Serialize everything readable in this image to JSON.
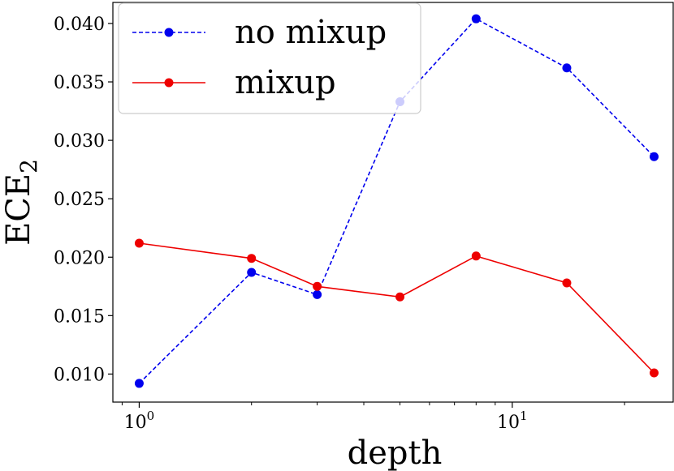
{
  "chart_data": {
    "type": "line",
    "xlabel": "depth",
    "ylabel": "ECE",
    "ylabel_subscript": "2",
    "xscale": "log",
    "xlim": [
      0.85,
      27
    ],
    "ylim": [
      0.0076,
      0.0418
    ],
    "xticks": [
      {
        "value": 1,
        "base": "10",
        "exp": "0"
      },
      {
        "value": 10,
        "base": "10",
        "exp": "1"
      }
    ],
    "yticks": [
      {
        "value": 0.01,
        "label": "0.010"
      },
      {
        "value": 0.015,
        "label": "0.015"
      },
      {
        "value": 0.02,
        "label": "0.020"
      },
      {
        "value": 0.025,
        "label": "0.025"
      },
      {
        "value": 0.03,
        "label": "0.030"
      },
      {
        "value": 0.035,
        "label": "0.035"
      },
      {
        "value": 0.04,
        "label": "0.040"
      }
    ],
    "x": [
      1,
      2,
      3,
      5,
      8,
      14,
      24
    ],
    "series": [
      {
        "name": "no mixup",
        "color": "#0000ee",
        "dashed": true,
        "values": [
          0.0092,
          0.0187,
          0.0168,
          0.0333,
          0.0404,
          0.0362,
          0.0286
        ]
      },
      {
        "name": "mixup",
        "color": "#ee0000",
        "dashed": false,
        "values": [
          0.0212,
          0.0199,
          0.0175,
          0.0166,
          0.0201,
          0.0178,
          0.0101
        ]
      }
    ],
    "legend_position": "top-left",
    "grid": false
  }
}
